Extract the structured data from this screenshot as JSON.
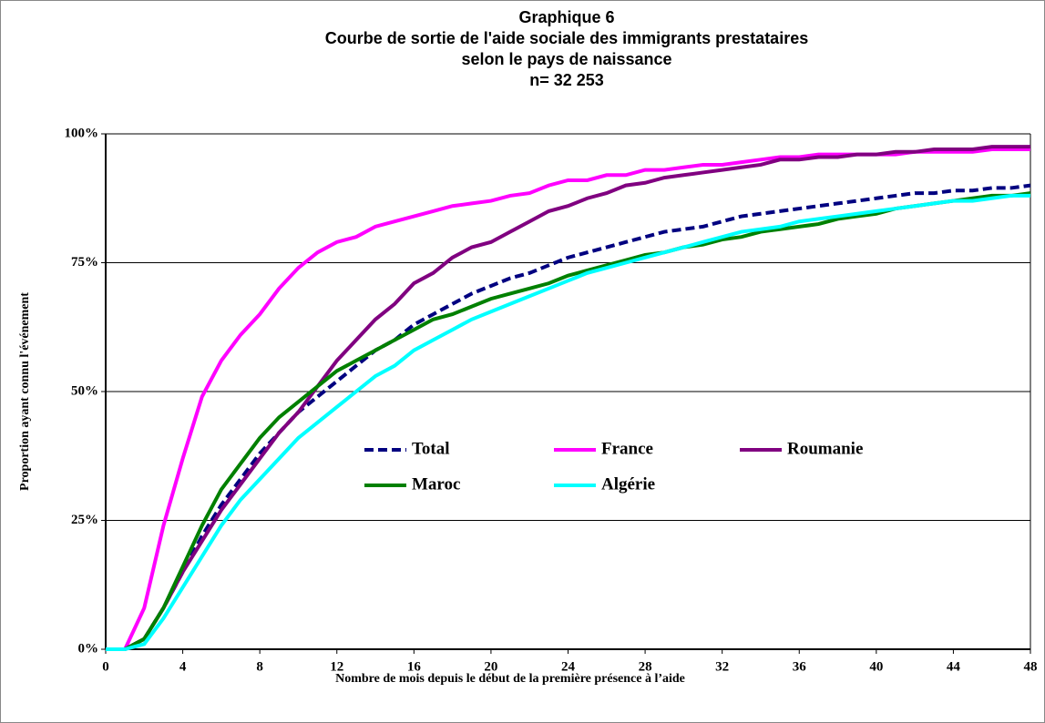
{
  "chart_data": {
    "type": "line",
    "title": [
      "Graphique 6",
      "Courbe de sortie de l'aide sociale des immigrants prestataires",
      "selon le pays de naissance",
      "n= 32 253"
    ],
    "xlabel": "Nombre de mois depuis le début de la première présence à l’aide",
    "ylabel": "Proportion ayant connu l'événement",
    "x": [
      0,
      1,
      2,
      3,
      4,
      5,
      6,
      7,
      8,
      9,
      10,
      11,
      12,
      13,
      14,
      15,
      16,
      17,
      18,
      19,
      20,
      21,
      22,
      23,
      24,
      25,
      26,
      27,
      28,
      29,
      30,
      31,
      32,
      33,
      34,
      35,
      36,
      37,
      38,
      39,
      40,
      41,
      42,
      43,
      44,
      45,
      46,
      47,
      48
    ],
    "xlim": [
      0,
      48
    ],
    "xticks": [
      0,
      4,
      8,
      12,
      16,
      20,
      24,
      28,
      32,
      36,
      40,
      44,
      48
    ],
    "ylim": [
      0,
      100
    ],
    "yticks": [
      {
        "value": 0,
        "label": "0%"
      },
      {
        "value": 25,
        "label": "25%"
      },
      {
        "value": 50,
        "label": "50%"
      },
      {
        "value": 75,
        "label": "75%"
      },
      {
        "value": 100,
        "label": "100%"
      }
    ],
    "grid": true,
    "legend": "center",
    "series": [
      {
        "name": "Total",
        "color": "#000080",
        "dashed": true,
        "values": [
          0,
          0,
          2,
          8,
          15,
          22,
          28,
          33,
          38,
          42,
          46,
          49,
          52,
          55,
          58,
          60,
          63,
          65,
          67,
          69,
          70.5,
          72,
          73,
          74.5,
          76,
          77,
          78,
          79,
          80,
          81,
          81.5,
          82,
          83,
          84,
          84.5,
          85,
          85.5,
          86,
          86.5,
          87,
          87.5,
          88,
          88.5,
          88.5,
          89,
          89,
          89.5,
          89.5,
          90
        ]
      },
      {
        "name": "France",
        "color": "#ff00ff",
        "values": [
          0,
          0,
          8,
          24,
          37,
          49,
          56,
          61,
          65,
          70,
          74,
          77,
          79,
          80,
          82,
          83,
          84,
          85,
          86,
          86.5,
          87,
          88,
          88.5,
          90,
          91,
          91,
          92,
          92,
          93,
          93,
          93.5,
          94,
          94,
          94.5,
          95,
          95.5,
          95.5,
          96,
          96,
          96,
          96,
          96,
          96.5,
          96.5,
          96.5,
          96.5,
          97,
          97,
          97
        ]
      },
      {
        "name": "Roumanie",
        "color": "#800080",
        "values": [
          0,
          0,
          2,
          8,
          15,
          21,
          27,
          32,
          37,
          42,
          46,
          51,
          56,
          60,
          64,
          67,
          71,
          73,
          76,
          78,
          79,
          81,
          83,
          85,
          86,
          87.5,
          88.5,
          90,
          90.5,
          91.5,
          92,
          92.5,
          93,
          93.5,
          94,
          95,
          95,
          95.5,
          95.5,
          96,
          96,
          96.5,
          96.5,
          97,
          97,
          97,
          97.5,
          97.5,
          97.5
        ]
      },
      {
        "name": "Maroc",
        "color": "#008000",
        "values": [
          0,
          0,
          2,
          8,
          16,
          24,
          31,
          36,
          41,
          45,
          48,
          51,
          54,
          56,
          58,
          60,
          62,
          64,
          65,
          66.5,
          68,
          69,
          70,
          71,
          72.5,
          73.5,
          74.5,
          75.5,
          76.5,
          77,
          78,
          78.5,
          79.5,
          80,
          81,
          81.5,
          82,
          82.5,
          83.5,
          84,
          84.5,
          85.5,
          86,
          86.5,
          87,
          87.5,
          88,
          88,
          88.5
        ]
      },
      {
        "name": "Algérie",
        "color": "#00ffff",
        "values": [
          0,
          0,
          1,
          6,
          12,
          18,
          24,
          29,
          33,
          37,
          41,
          44,
          47,
          50,
          53,
          55,
          58,
          60,
          62,
          64,
          65.5,
          67,
          68.5,
          70,
          71.5,
          73,
          74,
          75,
          76,
          77,
          78,
          79,
          80,
          81,
          81.5,
          82,
          83,
          83.5,
          84,
          84.5,
          85,
          85.5,
          86,
          86.5,
          87,
          87,
          87.5,
          88,
          88
        ]
      }
    ]
  }
}
